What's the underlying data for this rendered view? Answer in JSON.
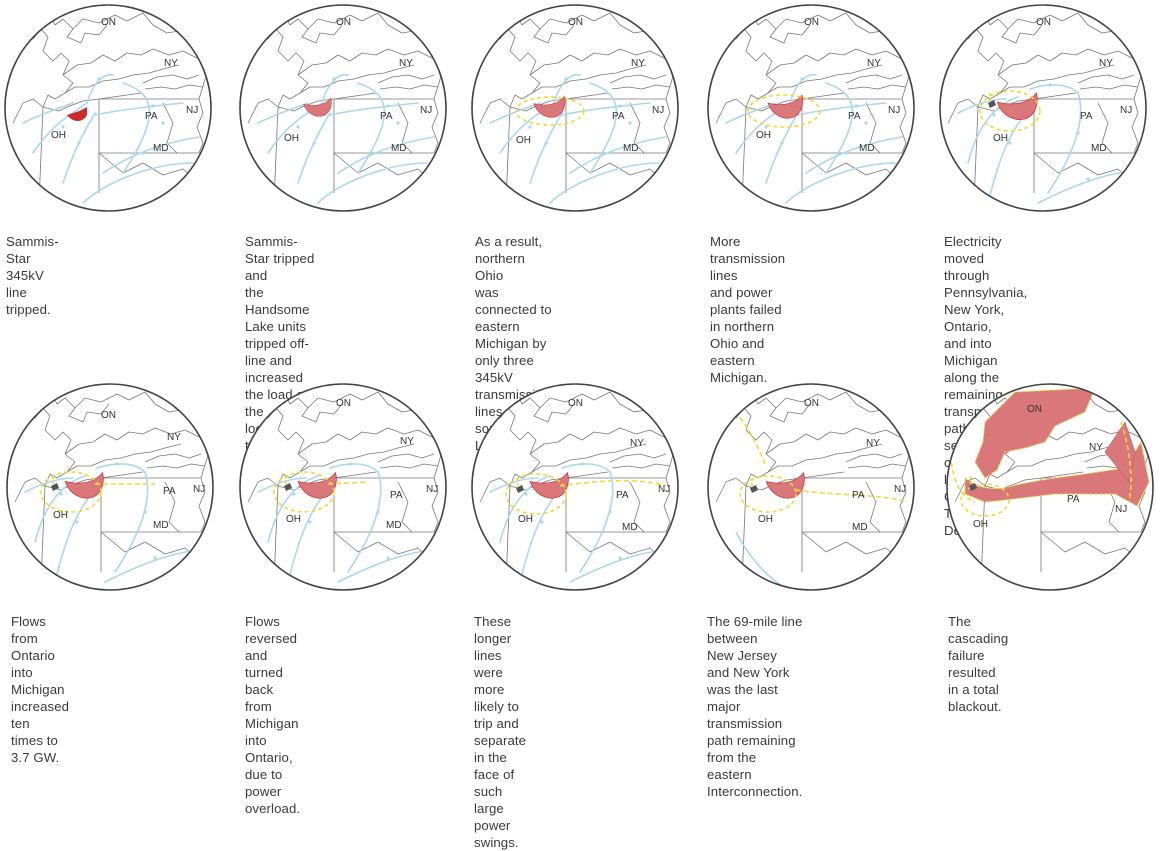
{
  "colors": {
    "border": "#444444",
    "state_line": "#777777",
    "flow": "#a9d8ee",
    "failed": "#d9777a",
    "failed_dark": "#cc2b2b",
    "dash": "#f2d83a",
    "marker": "#555555"
  },
  "panels": [
    {
      "caption": "Sammis-Star 345kV\nline tripped.",
      "labels": {
        "ON": "ON",
        "NY": "NY",
        "PA": "PA",
        "NJ": "NJ",
        "MD": "MD",
        "OH": "OH"
      },
      "stage": 1
    },
    {
      "caption": "Sammis-Star tripped and\nthe Handsome Lake units\ntripped off-line and\nincreased the load on the\nlocal transmission system.",
      "labels": {
        "ON": "ON",
        "NY": "NY",
        "PA": "PA",
        "NJ": "NJ",
        "MD": "MD",
        "OH": "OH"
      },
      "stage": 2
    },
    {
      "caption": "As a result, northern Ohio\nwas connected to eastern\nMichigan by only three\n345kV transmission lines near\nsouthwestern Lake Erie.",
      "labels": {
        "ON": "ON",
        "NY": "NY",
        "PA": "PA",
        "NJ": "NJ",
        "MD": "MD",
        "OH": "OH"
      },
      "stage": 3
    },
    {
      "caption": "More transmission lines\nand power plants failed\nin northern Ohio and\neastern Michigan.",
      "labels": {
        "ON": "ON",
        "NY": "NY",
        "PA": "PA",
        "NJ": "NJ",
        "MD": "MD",
        "OH": "OH"
      },
      "stage": 4
    },
    {
      "caption": "Electricity moved through\nPennsylvania, New York, Ontario,\nand into Michigan along the\nremaining transmission path to\nserve the combined loads of\nCleveland, Toledo, and Detroit.",
      "labels": {
        "ON": "ON",
        "NY": "NY",
        "PA": "PA",
        "NJ": "NJ",
        "MD": "MD",
        "OH": "OH"
      },
      "stage": 5
    },
    {
      "caption": "Flows from Ontario into\nMichigan increased ten\ntimes to 3.7 GW.",
      "labels": {
        "ON": "ON",
        "NY": "NY",
        "PA": "PA",
        "NJ": "NJ",
        "MD": "MD",
        "OH": "OH"
      },
      "stage": 6
    },
    {
      "caption": "Flows reversed and turned\nback from Michigan into\nOntario, due to power\noverload.",
      "labels": {
        "ON": "ON",
        "NY": "NY",
        "PA": "PA",
        "NJ": "NJ",
        "MD": "MD",
        "OH": "OH"
      },
      "stage": 7
    },
    {
      "caption": "These longer lines were\nmore likely to trip and\nseparate in the face of such\nlarge power swings.",
      "labels": {
        "ON": "ON",
        "NY": "NY",
        "PA": "PA",
        "NJ": "NJ",
        "MD": "MD",
        "OH": "OH"
      },
      "stage": 8
    },
    {
      "caption": "The 69-mile line between\nNew Jersey and New York\nwas the last major\ntransmission path remaining\nfrom the eastern\nInterconnection.",
      "labels": {
        "ON": "ON",
        "NY": "NY",
        "PA": "PA",
        "NJ": "NJ",
        "MD": "MD",
        "OH": "OH"
      },
      "stage": 9
    },
    {
      "caption": "The cascading failure\nresulted in a total blackout.",
      "labels": {
        "ON": "ON",
        "NY": "NY",
        "PA": "PA",
        "NJ": "NJ",
        "MD": "MD",
        "OH": "OH"
      },
      "stage": 10
    }
  ]
}
